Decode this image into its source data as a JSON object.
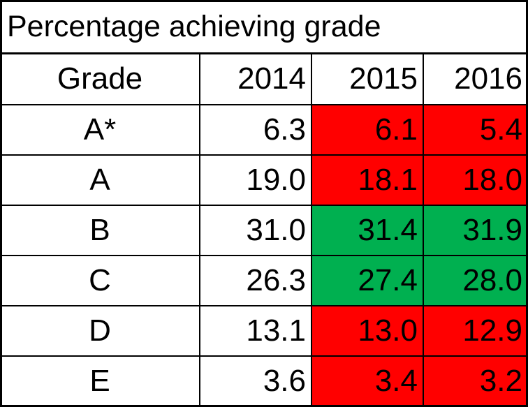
{
  "chart_data": {
    "type": "table",
    "title": "Percentage achieving grade",
    "header": [
      "Grade",
      "2014",
      "2015",
      "2016"
    ],
    "rows": [
      {
        "grade": "A*",
        "values": [
          "6.3",
          "6.1",
          "5.4"
        ]
      },
      {
        "grade": "A",
        "values": [
          "19.0",
          "18.1",
          "18.0"
        ]
      },
      {
        "grade": "B",
        "values": [
          "31.0",
          "31.4",
          "31.9"
        ]
      },
      {
        "grade": "C",
        "values": [
          "26.3",
          "27.4",
          "28.0"
        ]
      },
      {
        "grade": "D",
        "values": [
          "13.1",
          "13.0",
          "12.9"
        ]
      },
      {
        "grade": "E",
        "values": [
          "3.6",
          "3.4",
          "3.2"
        ]
      }
    ],
    "colors": {
      "decrease": "#ff0000",
      "increase": "#00b050",
      "neutral": "#ffffff"
    }
  }
}
